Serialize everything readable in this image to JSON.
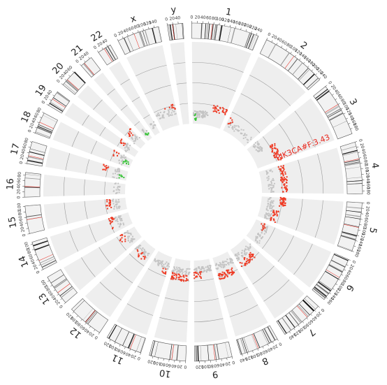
{
  "chart_data": {
    "type": "scatter",
    "layout": "circos",
    "title": "",
    "colors": {
      "gain": "#ef3b24",
      "loss": "#3cc43c",
      "neutral": "#c4c4c4",
      "track_bg": "#eeeeee",
      "centromere": "#e8261c",
      "acrocentric": "#5b80c6"
    },
    "chromosomes": [
      {
        "name": "1",
        "length": 249,
        "ticks": [
          0,
          20,
          40,
          60,
          80,
          100,
          120,
          140,
          160,
          180,
          200,
          220,
          240
        ]
      },
      {
        "name": "2",
        "length": 243,
        "ticks": [
          0,
          20,
          40,
          60,
          80,
          100,
          120,
          140,
          160,
          180,
          200,
          220,
          240
        ]
      },
      {
        "name": "3",
        "length": 198,
        "ticks": [
          0,
          20,
          40,
          60,
          80,
          100,
          120,
          140,
          160,
          180
        ]
      },
      {
        "name": "4",
        "length": 191,
        "ticks": [
          0,
          20,
          40,
          60,
          80,
          100,
          120,
          140,
          160,
          180
        ]
      },
      {
        "name": "5",
        "length": 181,
        "ticks": [
          0,
          20,
          40,
          60,
          80,
          100,
          120,
          140,
          160,
          180
        ]
      },
      {
        "name": "6",
        "length": 171,
        "ticks": [
          0,
          20,
          40,
          60,
          80,
          100,
          120,
          140,
          160
        ]
      },
      {
        "name": "7",
        "length": 159,
        "ticks": [
          0,
          20,
          40,
          60,
          80,
          100,
          120,
          140
        ]
      },
      {
        "name": "8",
        "length": 145,
        "ticks": [
          0,
          20,
          40,
          60,
          80,
          100,
          120,
          140
        ]
      },
      {
        "name": "9",
        "length": 138,
        "ticks": [
          0,
          20,
          40,
          60,
          80,
          100,
          120
        ]
      },
      {
        "name": "10",
        "length": 134,
        "ticks": [
          0,
          20,
          40,
          60,
          80,
          100,
          120
        ]
      },
      {
        "name": "11",
        "length": 135,
        "ticks": [
          0,
          20,
          40,
          60,
          80,
          100,
          120
        ]
      },
      {
        "name": "12",
        "length": 133,
        "ticks": [
          0,
          20,
          40,
          60,
          80,
          100,
          120
        ]
      },
      {
        "name": "13",
        "length": 114,
        "ticks": [
          0,
          20,
          40,
          60,
          80,
          100
        ]
      },
      {
        "name": "14",
        "length": 107,
        "ticks": [
          0,
          20,
          40,
          60,
          80,
          100
        ]
      },
      {
        "name": "15",
        "length": 102,
        "ticks": [
          0,
          20,
          40,
          60,
          80,
          100
        ]
      },
      {
        "name": "16",
        "length": 90,
        "ticks": [
          0,
          20,
          40,
          60,
          80
        ]
      },
      {
        "name": "17",
        "length": 83,
        "ticks": [
          0,
          20,
          40,
          60,
          80
        ]
      },
      {
        "name": "18",
        "length": 80,
        "ticks": [
          0,
          20,
          40,
          60,
          80
        ]
      },
      {
        "name": "19",
        "length": 59,
        "ticks": [
          0,
          20,
          40
        ]
      },
      {
        "name": "20",
        "length": 64,
        "ticks": [
          0,
          20,
          40,
          60
        ]
      },
      {
        "name": "21",
        "length": 47,
        "ticks": [
          0,
          20,
          40
        ]
      },
      {
        "name": "22",
        "length": 51,
        "ticks": [
          0,
          20,
          40
        ]
      },
      {
        "name": "x",
        "length": 156,
        "ticks": [
          0,
          20,
          40,
          60,
          80,
          100,
          120,
          140
        ]
      },
      {
        "name": "y",
        "length": 57,
        "ticks": [
          0,
          20,
          40
        ]
      }
    ],
    "segments": [
      {
        "chr": "1",
        "start": 5,
        "end": 120,
        "level": 0.12,
        "type": "neutral",
        "n": 70
      },
      {
        "chr": "1",
        "start": 15,
        "end": 30,
        "level": 0.08,
        "type": "loss",
        "n": 10
      },
      {
        "chr": "1",
        "start": 145,
        "end": 248,
        "level": 0.22,
        "type": "gain",
        "n": 30
      },
      {
        "chr": "2",
        "start": 5,
        "end": 240,
        "level": 0.1,
        "type": "neutral",
        "n": 40
      },
      {
        "chr": "2",
        "start": 0,
        "end": 40,
        "level": 0.14,
        "type": "gain",
        "n": 6
      },
      {
        "chr": "3",
        "start": 0,
        "end": 90,
        "level": 0.12,
        "type": "neutral",
        "n": 40
      },
      {
        "chr": "3",
        "start": 80,
        "end": 198,
        "level": 0.28,
        "type": "gain",
        "n": 40
      },
      {
        "chr": "4",
        "start": 10,
        "end": 185,
        "level": 0.12,
        "type": "neutral",
        "n": 40
      },
      {
        "chr": "4",
        "start": 5,
        "end": 185,
        "level": 0.28,
        "type": "gain",
        "n": 60
      },
      {
        "chr": "5",
        "start": 0,
        "end": 60,
        "level": 0.26,
        "type": "gain",
        "n": 40
      },
      {
        "chr": "5",
        "start": 5,
        "end": 180,
        "level": 0.12,
        "type": "neutral",
        "n": 60
      },
      {
        "chr": "5",
        "start": 90,
        "end": 180,
        "level": 0.2,
        "type": "gain",
        "n": 25
      },
      {
        "chr": "6",
        "start": 5,
        "end": 170,
        "level": 0.14,
        "type": "neutral",
        "n": 40
      },
      {
        "chr": "6",
        "start": 0,
        "end": 60,
        "level": 0.1,
        "type": "gain",
        "n": 10
      },
      {
        "chr": "7",
        "start": 0,
        "end": 158,
        "level": 0.12,
        "type": "neutral",
        "n": 45
      },
      {
        "chr": "7",
        "start": 40,
        "end": 158,
        "level": 0.22,
        "type": "gain",
        "n": 40
      },
      {
        "chr": "8",
        "start": 0,
        "end": 145,
        "level": 0.12,
        "type": "neutral",
        "n": 45
      },
      {
        "chr": "8",
        "start": 30,
        "end": 145,
        "level": 0.24,
        "type": "gain",
        "n": 50
      },
      {
        "chr": "9",
        "start": 0,
        "end": 138,
        "level": 0.12,
        "type": "neutral",
        "n": 60
      },
      {
        "chr": "9",
        "start": 80,
        "end": 138,
        "level": 0.18,
        "type": "gain",
        "n": 20
      },
      {
        "chr": "10",
        "start": 0,
        "end": 134,
        "level": 0.14,
        "type": "neutral",
        "n": 50
      },
      {
        "chr": "10",
        "start": 10,
        "end": 130,
        "level": 0.22,
        "type": "gain",
        "n": 40
      },
      {
        "chr": "11",
        "start": 0,
        "end": 135,
        "level": 0.12,
        "type": "neutral",
        "n": 40
      },
      {
        "chr": "11",
        "start": 0,
        "end": 50,
        "level": 0.18,
        "type": "gain",
        "n": 8
      },
      {
        "chr": "12",
        "start": 0,
        "end": 133,
        "level": 0.12,
        "type": "neutral",
        "n": 35
      },
      {
        "chr": "12",
        "start": 20,
        "end": 120,
        "level": 0.16,
        "type": "gain",
        "n": 14
      },
      {
        "chr": "13",
        "start": 20,
        "end": 114,
        "level": 0.12,
        "type": "neutral",
        "n": 30
      },
      {
        "chr": "13",
        "start": 50,
        "end": 110,
        "level": 0.2,
        "type": "gain",
        "n": 12
      },
      {
        "chr": "14",
        "start": 20,
        "end": 107,
        "level": 0.14,
        "type": "neutral",
        "n": 30
      },
      {
        "chr": "14",
        "start": 30,
        "end": 107,
        "level": 0.22,
        "type": "gain",
        "n": 16
      },
      {
        "chr": "15",
        "start": 20,
        "end": 102,
        "level": 0.12,
        "type": "neutral",
        "n": 25
      },
      {
        "chr": "15",
        "start": 30,
        "end": 100,
        "level": 0.22,
        "type": "gain",
        "n": 18
      },
      {
        "chr": "16",
        "start": 0,
        "end": 90,
        "level": 0.1,
        "type": "neutral",
        "n": 20
      },
      {
        "chr": "17",
        "start": 0,
        "end": 83,
        "level": 0.14,
        "type": "neutral",
        "n": 20
      },
      {
        "chr": "17",
        "start": 10,
        "end": 40,
        "level": 0.06,
        "type": "loss",
        "n": 8
      },
      {
        "chr": "17",
        "start": 45,
        "end": 83,
        "level": 0.28,
        "type": "gain",
        "n": 12
      },
      {
        "chr": "18",
        "start": 0,
        "end": 80,
        "level": 0.12,
        "type": "neutral",
        "n": 20
      },
      {
        "chr": "18",
        "start": 20,
        "end": 50,
        "level": 0.06,
        "type": "loss",
        "n": 10
      },
      {
        "chr": "18",
        "start": 40,
        "end": 80,
        "level": 0.22,
        "type": "gain",
        "n": 8
      },
      {
        "chr": "19",
        "start": 0,
        "end": 59,
        "level": 0.14,
        "type": "neutral",
        "n": 20
      },
      {
        "chr": "19",
        "start": 30,
        "end": 59,
        "level": 0.22,
        "type": "gain",
        "n": 8
      },
      {
        "chr": "20",
        "start": 0,
        "end": 64,
        "level": 0.14,
        "type": "neutral",
        "n": 20
      },
      {
        "chr": "20",
        "start": 0,
        "end": 64,
        "level": 0.22,
        "type": "gain",
        "n": 10
      },
      {
        "chr": "21",
        "start": 15,
        "end": 47,
        "level": 0.12,
        "type": "neutral",
        "n": 12
      },
      {
        "chr": "21",
        "start": 20,
        "end": 47,
        "level": 0.06,
        "type": "loss",
        "n": 8
      },
      {
        "chr": "22",
        "start": 15,
        "end": 51,
        "level": 0.12,
        "type": "neutral",
        "n": 12
      },
      {
        "chr": "x",
        "start": 0,
        "end": 156,
        "level": 0.18,
        "type": "neutral",
        "n": 40
      },
      {
        "chr": "x",
        "start": 80,
        "end": 156,
        "level": 0.24,
        "type": "gain",
        "n": 10
      }
    ],
    "annotations": [
      {
        "chr": "3",
        "pos": 179,
        "text": "PIK3CA#F:3.43",
        "color": "#e8261c"
      }
    ]
  }
}
